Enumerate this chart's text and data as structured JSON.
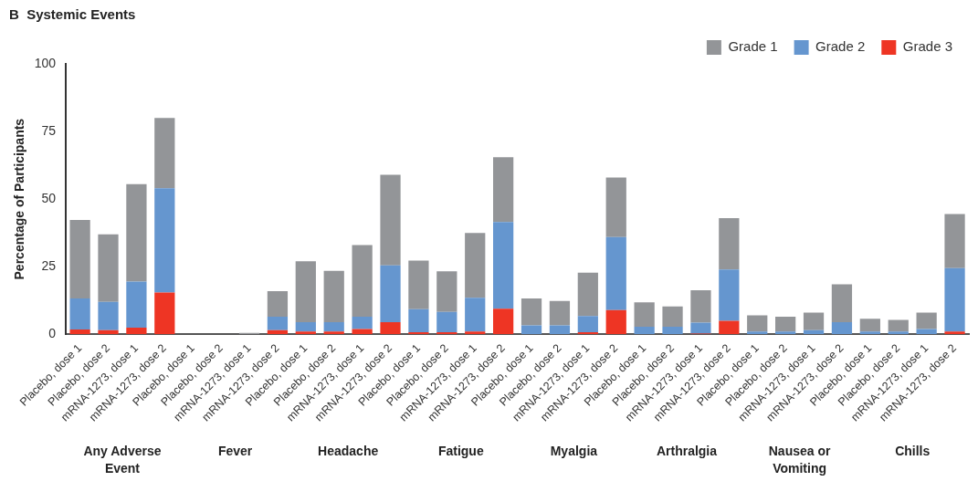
{
  "chart_data": {
    "type": "bar",
    "title": "B  Systemic Events",
    "ylabel": "Percentage of Participants",
    "categories": [
      "Placebo, dose 1",
      "Placebo, dose 2",
      "mRNA-1273, dose 1",
      "mRNA-1273, dose 2",
      "Placebo, dose 1",
      "Placebo, dose 2",
      "mRNA-1273, dose 1",
      "mRNA-1273, dose 2",
      "Placebo, dose 1",
      "Placebo, dose 2",
      "mRNA-1273, dose 1",
      "mRNA-1273, dose 2",
      "Placebo, dose 1",
      "Placebo, dose 2",
      "mRNA-1273, dose 1",
      "mRNA-1273, dose 2",
      "Placebo, dose 1",
      "Placebo, dose 2",
      "mRNA-1273, dose 1",
      "mRNA-1273, dose 2",
      "Placebo, dose 1",
      "Placebo, dose 2",
      "mRNA-1273, dose 1",
      "mRNA-1273, dose 2",
      "Placebo, dose 1",
      "Placebo, dose 2",
      "mRNA-1273, dose 1",
      "mRNA-1273, dose 2",
      "Placebo, dose 1",
      "Placebo, dose 2",
      "mRNA-1273, dose 1",
      "mRNA-1273, dose 2"
    ],
    "series": [
      {
        "name": "Grade 3",
        "color": "#ee3524",
        "values": [
          1.8,
          1.5,
          2.5,
          15.5,
          0,
          0,
          0,
          1.5,
          1,
          1,
          2,
          4.5,
          0.8,
          0.8,
          1,
          9.5,
          0,
          0,
          0.8,
          9,
          0,
          0,
          0.3,
          5,
          0,
          0,
          0,
          0,
          0,
          0,
          0,
          1
        ]
      },
      {
        "name": "Grade 2",
        "color": "#6596cf",
        "values": [
          11.5,
          10.5,
          17,
          38.5,
          0,
          0,
          0,
          5,
          3.5,
          3.5,
          4.5,
          21,
          8.5,
          7.5,
          12.5,
          32,
          3.3,
          3.3,
          6,
          27,
          2.8,
          2.8,
          4,
          19,
          1,
          1,
          1.5,
          4.5,
          1,
          1,
          2,
          23.5
        ]
      },
      {
        "name": "Grade 1",
        "color": "#939598",
        "values": [
          29,
          25,
          36,
          26,
          0,
          0,
          0.5,
          9.5,
          22.5,
          19,
          26.5,
          33.5,
          18,
          15,
          24,
          24,
          10,
          9,
          16,
          22,
          9,
          7.5,
          12,
          19,
          6,
          5.5,
          6.5,
          14,
          4.8,
          4.3,
          6,
          20
        ]
      }
    ],
    "stacked": true,
    "ylim": [
      0,
      100
    ],
    "yticks": [
      0,
      25,
      50,
      75,
      100
    ],
    "grid": false,
    "legend": "top right",
    "annotations": [
      "Any Adverse Event",
      "Fever",
      "Headache",
      "Fatigue",
      "Myalgia",
      "Arthralgia",
      "Nausea or Vomiting",
      "Chills"
    ]
  }
}
